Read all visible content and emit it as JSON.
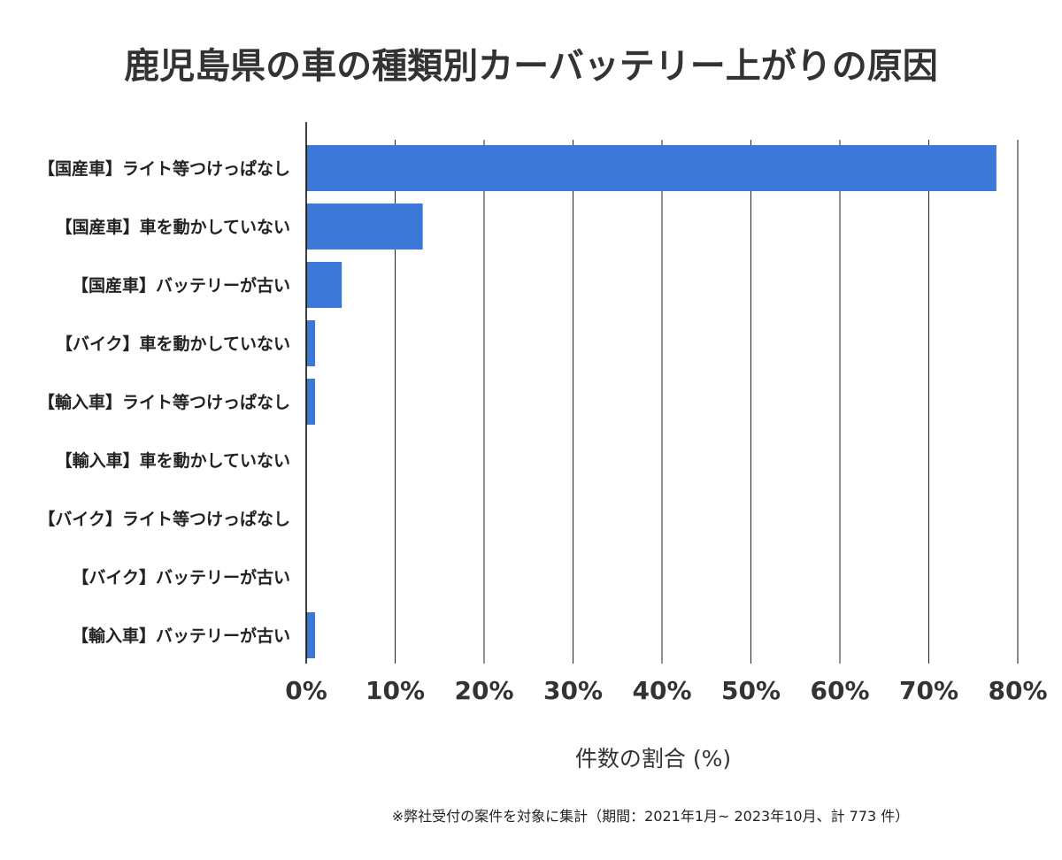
{
  "chart_data": {
    "type": "bar",
    "orientation": "horizontal",
    "title": "鹿児島県の車の種類別カーバッテリー上がりの原因",
    "categories": [
      "【国産車】ライト等つけっぱなし",
      "【国産車】車を動かしていない",
      "【国産車】バッテリーが古い",
      "【バイク】車を動かしていない",
      "【輸入車】ライト等つけっぱなし",
      "【輸入車】車を動かしていない",
      "【バイク】ライト等つけっぱなし",
      "【バイク】バッテリーが古い",
      "【輸入車】バッテリーが古い"
    ],
    "values": [
      77.6,
      13.1,
      4.0,
      1.0,
      1.0,
      0,
      0,
      0,
      1.0
    ],
    "xlabel": "件数の割合 (%)",
    "ylabel": "",
    "xlim": [
      0,
      80
    ],
    "xticks": [
      0,
      10,
      20,
      30,
      40,
      50,
      60,
      70,
      80
    ],
    "tick_labels": [
      "0%",
      "10%",
      "20%",
      "30%",
      "40%",
      "50%",
      "60%",
      "70%",
      "80%"
    ],
    "grid": true,
    "bar_color": "#3c78d8",
    "footnote": "※弊社受付の案件を対象に集計（期間：2021年1月~ 2023年10月、計 773 件）"
  }
}
